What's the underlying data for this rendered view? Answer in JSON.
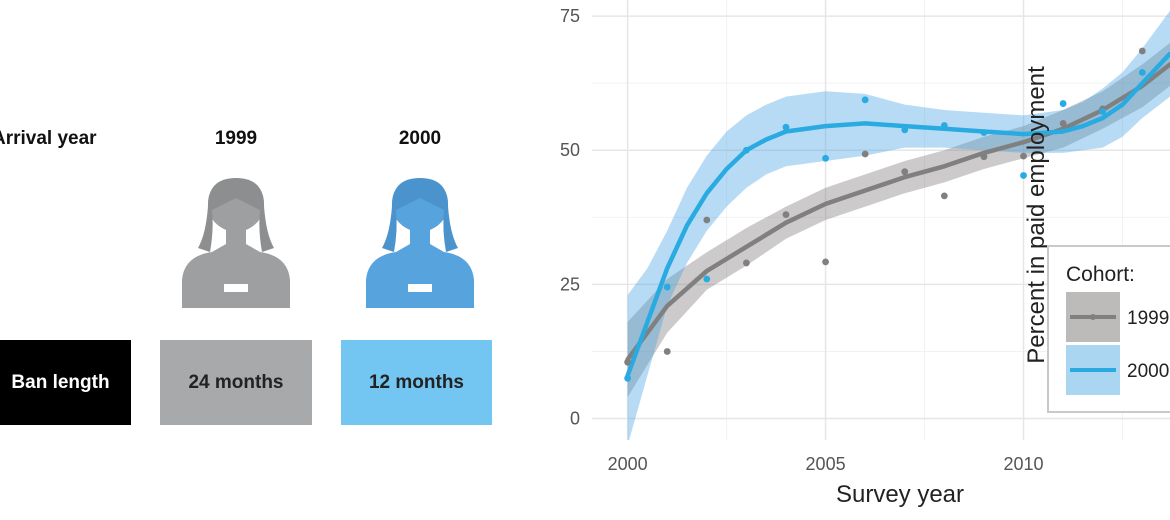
{
  "left_panel": {
    "row_label": "Arrival year",
    "ban_label": "Ban length",
    "cohorts": [
      {
        "year": "1999",
        "ban": "24 months",
        "icon": "person-icon",
        "color": "#9d9fa1",
        "box_color": "#a7a9ab"
      },
      {
        "year": "2000",
        "ban": "12 months",
        "icon": "person-icon",
        "color": "#57a3dd",
        "box_color": "#74c6f2"
      }
    ]
  },
  "chart_data": {
    "type": "scatter",
    "title": "",
    "xlabel": "Survey year",
    "ylabel": "Percent in paid employment",
    "xlim": [
      1999.1,
      2013.7
    ],
    "ylim": [
      -4,
      78
    ],
    "xticks": [
      2000,
      2005,
      2010
    ],
    "yticks": [
      0,
      25,
      50,
      75
    ],
    "grid": true,
    "legend": {
      "title": "Cohort:",
      "position": "right",
      "entries": [
        "1999",
        "2000"
      ]
    },
    "series": [
      {
        "name": "1999",
        "color": "#808080",
        "x": [
          2000,
          2001,
          2002,
          2003,
          2004,
          2005,
          2006,
          2007,
          2008,
          2009,
          2010,
          2011,
          2012,
          2013
        ],
        "y": [
          10.5,
          12.5,
          37.0,
          29.0,
          38.0,
          29.2,
          49.3,
          46.0,
          41.5,
          48.8,
          48.9,
          55.0,
          57.7,
          68.5
        ],
        "fit": [
          [
            2000,
            11
          ],
          [
            2001,
            21
          ],
          [
            2002,
            27.5
          ],
          [
            2003,
            32
          ],
          [
            2004,
            36.5
          ],
          [
            2005,
            40
          ],
          [
            2006,
            42.5
          ],
          [
            2007,
            45
          ],
          [
            2008,
            47
          ],
          [
            2009,
            49.5
          ],
          [
            2010,
            51.5
          ],
          [
            2011,
            54
          ],
          [
            2012,
            57.5
          ],
          [
            2013,
            62
          ],
          [
            2013.7,
            66
          ]
        ],
        "band_upper": [
          [
            2000,
            18
          ],
          [
            2001,
            26
          ],
          [
            2002,
            31
          ],
          [
            2003,
            35.5
          ],
          [
            2004,
            39.5
          ],
          [
            2005,
            43
          ],
          [
            2006,
            45.5
          ],
          [
            2007,
            48
          ],
          [
            2008,
            50
          ],
          [
            2009,
            52.5
          ],
          [
            2010,
            54.5
          ],
          [
            2011,
            57.5
          ],
          [
            2012,
            61
          ],
          [
            2013,
            66
          ],
          [
            2013.7,
            70
          ]
        ],
        "band_lower": [
          [
            2000,
            4
          ],
          [
            2001,
            16
          ],
          [
            2002,
            24
          ],
          [
            2003,
            28.5
          ],
          [
            2004,
            33.5
          ],
          [
            2005,
            37
          ],
          [
            2006,
            39.5
          ],
          [
            2007,
            42
          ],
          [
            2008,
            44
          ],
          [
            2009,
            46.5
          ],
          [
            2010,
            48.5
          ],
          [
            2011,
            50.5
          ],
          [
            2012,
            54
          ],
          [
            2013,
            58
          ],
          [
            2013.7,
            62
          ]
        ]
      },
      {
        "name": "2000",
        "color": "#29abe2",
        "x": [
          2000,
          2001,
          2002,
          2003,
          2004,
          2005,
          2006,
          2007,
          2008,
          2009,
          2010,
          2011,
          2012,
          2013
        ],
        "y": [
          7.5,
          24.5,
          26.0,
          50.0,
          54.3,
          48.5,
          59.4,
          53.8,
          54.6,
          53.3,
          45.3,
          58.7,
          57.2,
          64.5
        ],
        "fit": [
          [
            2000,
            8
          ],
          [
            2000.5,
            18
          ],
          [
            2001,
            28
          ],
          [
            2001.5,
            36
          ],
          [
            2002,
            42
          ],
          [
            2002.5,
            46.5
          ],
          [
            2003,
            50
          ],
          [
            2003.5,
            52
          ],
          [
            2004,
            53.5
          ],
          [
            2005,
            54.5
          ],
          [
            2006,
            55
          ],
          [
            2007,
            54.5
          ],
          [
            2008,
            54
          ],
          [
            2009,
            53.5
          ],
          [
            2010,
            53
          ],
          [
            2011,
            53.5
          ],
          [
            2011.5,
            54.5
          ],
          [
            2012,
            56
          ],
          [
            2012.5,
            58.5
          ],
          [
            2013,
            62.5
          ],
          [
            2013.7,
            68
          ]
        ],
        "band_upper": [
          [
            2000,
            23
          ],
          [
            2000.5,
            28
          ],
          [
            2001,
            35
          ],
          [
            2001.5,
            43
          ],
          [
            2002,
            49
          ],
          [
            2002.5,
            53.5
          ],
          [
            2003,
            56.5
          ],
          [
            2003.5,
            58.5
          ],
          [
            2004,
            60
          ],
          [
            2005,
            61
          ],
          [
            2006,
            60.5
          ],
          [
            2007,
            58.5
          ],
          [
            2008,
            57.5
          ],
          [
            2009,
            57
          ],
          [
            2010,
            56.5
          ],
          [
            2011,
            57.5
          ],
          [
            2011.5,
            59
          ],
          [
            2012,
            61.5
          ],
          [
            2012.5,
            64.5
          ],
          [
            2013,
            69
          ],
          [
            2013.7,
            76
          ]
        ],
        "band_lower": [
          [
            2000,
            -5
          ],
          [
            2000.5,
            8
          ],
          [
            2001,
            21
          ],
          [
            2001.5,
            29
          ],
          [
            2002,
            35
          ],
          [
            2002.5,
            39.5
          ],
          [
            2003,
            43
          ],
          [
            2003.5,
            45.5
          ],
          [
            2004,
            47
          ],
          [
            2005,
            48
          ],
          [
            2006,
            49
          ],
          [
            2007,
            50.5
          ],
          [
            2008,
            50.5
          ],
          [
            2009,
            50
          ],
          [
            2010,
            49.5
          ],
          [
            2011,
            49.5
          ],
          [
            2011.5,
            50
          ],
          [
            2012,
            50.5
          ],
          [
            2012.5,
            52.5
          ],
          [
            2013,
            56
          ],
          [
            2013.7,
            60
          ]
        ]
      }
    ]
  }
}
